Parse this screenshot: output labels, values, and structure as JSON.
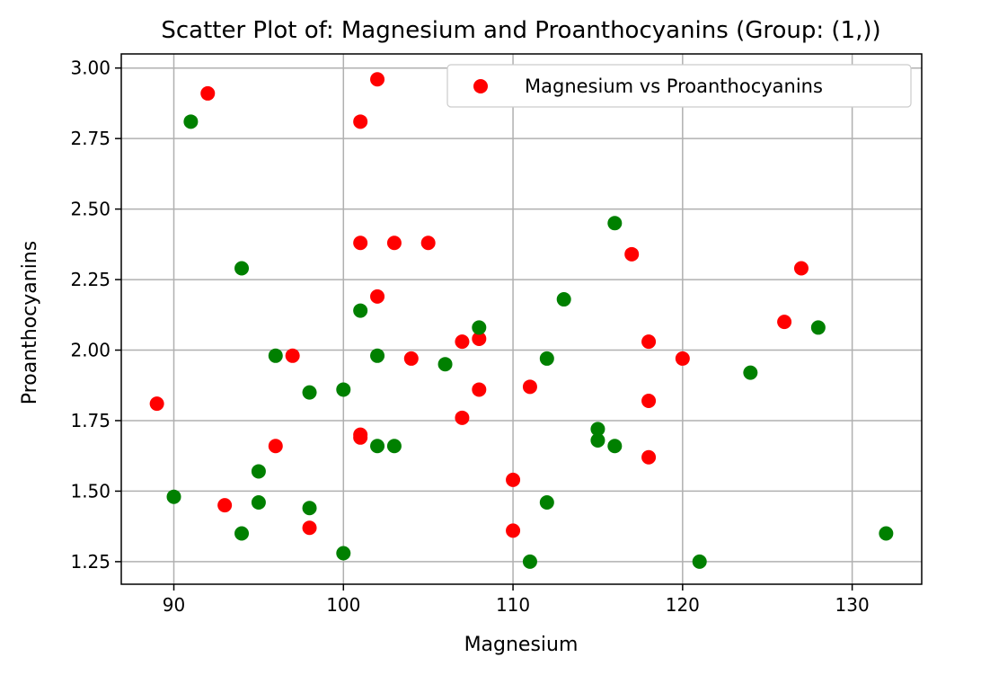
{
  "chart_data": {
    "type": "scatter",
    "title": "Scatter Plot of: Magnesium and Proanthocyanins (Group: (1,))",
    "xlabel": "Magnesium",
    "ylabel": "Proanthocyanins",
    "xlim": [
      86.9,
      134.1
    ],
    "ylim": [
      1.17,
      3.05
    ],
    "x_ticks": [
      90,
      100,
      110,
      120,
      130
    ],
    "y_ticks": [
      1.25,
      1.5,
      1.75,
      2.0,
      2.25,
      2.5,
      2.75,
      3.0
    ],
    "x_tick_labels": [
      "90",
      "100",
      "110",
      "120",
      "130"
    ],
    "y_tick_labels": [
      "1.25",
      "1.50",
      "1.75",
      "2.00",
      "2.25",
      "2.50",
      "2.75",
      "3.00"
    ],
    "grid": true,
    "legend_position": "top-right",
    "series": [
      {
        "name": "Magnesium vs Proanthocyanins",
        "color": "#ff0000",
        "points": [
          [
            92,
            2.91
          ],
          [
            102,
            2.96
          ],
          [
            101,
            2.81
          ],
          [
            101,
            2.38
          ],
          [
            103,
            2.38
          ],
          [
            105,
            2.38
          ],
          [
            102,
            2.19
          ],
          [
            117,
            2.34
          ],
          [
            127,
            2.29
          ],
          [
            126,
            2.1
          ],
          [
            89,
            1.81
          ],
          [
            97,
            1.98
          ],
          [
            104,
            1.97
          ],
          [
            107,
            2.03
          ],
          [
            108,
            2.04
          ],
          [
            118,
            2.03
          ],
          [
            120,
            1.97
          ],
          [
            108,
            1.86
          ],
          [
            111,
            1.87
          ],
          [
            118,
            1.82
          ],
          [
            107,
            1.76
          ],
          [
            101,
            1.7
          ],
          [
            101,
            1.69
          ],
          [
            96,
            1.66
          ],
          [
            118,
            1.62
          ],
          [
            110,
            1.54
          ],
          [
            93,
            1.45
          ],
          [
            98,
            1.37
          ],
          [
            110,
            1.36
          ]
        ]
      },
      {
        "color": "#008000",
        "points": [
          [
            91,
            2.81
          ],
          [
            94,
            2.29
          ],
          [
            116,
            2.45
          ],
          [
            101,
            2.14
          ],
          [
            113,
            2.18
          ],
          [
            108,
            2.08
          ],
          [
            128,
            2.08
          ],
          [
            96,
            1.98
          ],
          [
            102,
            1.98
          ],
          [
            106,
            1.95
          ],
          [
            112,
            1.97
          ],
          [
            124,
            1.92
          ],
          [
            98,
            1.85
          ],
          [
            100,
            1.86
          ],
          [
            115,
            1.72
          ],
          [
            115,
            1.68
          ],
          [
            116,
            1.66
          ],
          [
            102,
            1.66
          ],
          [
            103,
            1.66
          ],
          [
            95,
            1.57
          ],
          [
            90,
            1.48
          ],
          [
            95,
            1.46
          ],
          [
            112,
            1.46
          ],
          [
            98,
            1.44
          ],
          [
            94,
            1.35
          ],
          [
            132,
            1.35
          ],
          [
            100,
            1.28
          ],
          [
            111,
            1.25
          ],
          [
            121,
            1.25
          ]
        ]
      }
    ],
    "legend": [
      {
        "label": "Magnesium vs Proanthocyanins",
        "color": "#ff0000"
      }
    ]
  }
}
